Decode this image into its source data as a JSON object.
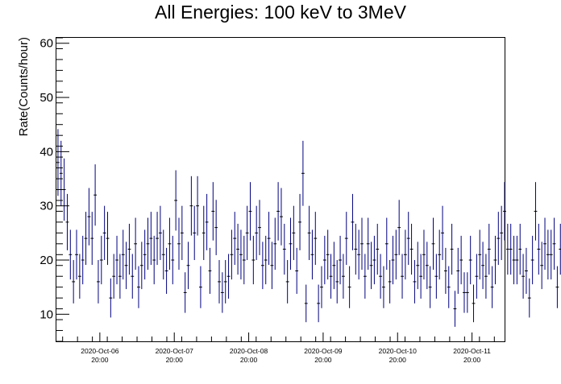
{
  "chart_data": {
    "type": "scatter",
    "title": "All Energies:  100 keV to 3MeV",
    "xlabel": "",
    "ylabel": "Rate(Counts/hour)",
    "ylim": [
      5,
      61
    ],
    "xlim_hours": [
      -14.0,
      130.5
    ],
    "y_ticks": [
      "10",
      "20",
      "30",
      "40",
      "50",
      "60"
    ],
    "x_ticks": [
      {
        "date": "2020-Oct-06",
        "time": "20:00"
      },
      {
        "date": "2020-Oct-07",
        "time": "20:00"
      },
      {
        "date": "2020-Oct-08",
        "time": "20:00"
      },
      {
        "date": "2020-Oct-09",
        "time": "20:00"
      },
      {
        "date": "2020-Oct-10",
        "time": "20:00"
      },
      {
        "date": "2020-Oct-11",
        "time": "20:00"
      }
    ],
    "grid": false,
    "series": [
      {
        "color": "#000080",
        "error_style": "symmetric vertical error bar (sqrt N) with 1-hour horizontal bin width",
        "values": [
          38,
          36,
          33,
          27,
          21,
          16,
          21,
          17,
          20,
          24,
          28,
          24,
          32,
          16,
          20,
          25,
          24,
          13,
          17,
          20,
          17,
          21,
          19,
          22,
          17,
          23,
          15,
          19,
          21,
          23,
          24,
          20,
          24,
          25,
          21,
          18,
          23,
          20,
          31,
          23,
          25,
          14,
          19,
          30,
          25,
          30,
          15,
          25,
          27,
          18,
          29,
          26,
          16,
          14,
          16,
          17,
          21,
          24,
          22,
          21,
          20,
          25,
          29,
          20,
          25,
          26,
          19,
          20,
          24,
          19,
          23,
          29,
          28,
          22,
          16,
          23,
          25,
          18,
          27,
          36,
          12,
          25,
          21,
          24,
          12,
          15,
          20,
          21,
          17,
          19,
          16,
          20,
          17,
          24,
          15,
          27,
          22,
          21,
          23,
          17,
          23,
          19,
          20,
          22,
          17,
          15,
          23,
          16,
          20,
          21,
          26,
          17,
          21,
          24,
          22,
          16,
          19,
          17,
          21,
          19,
          15,
          23,
          17,
          21,
          25,
          18,
          15,
          22,
          11,
          18,
          20,
          14,
          14,
          20,
          12,
          17,
          21,
          19,
          17,
          22,
          15,
          20,
          24,
          25,
          29,
          22,
          22,
          20,
          20,
          22,
          17,
          18,
          13,
          20,
          29,
          22,
          19,
          23,
          21,
          21,
          23,
          15,
          22,
          18,
          20,
          23,
          15
        ]
      }
    ]
  }
}
